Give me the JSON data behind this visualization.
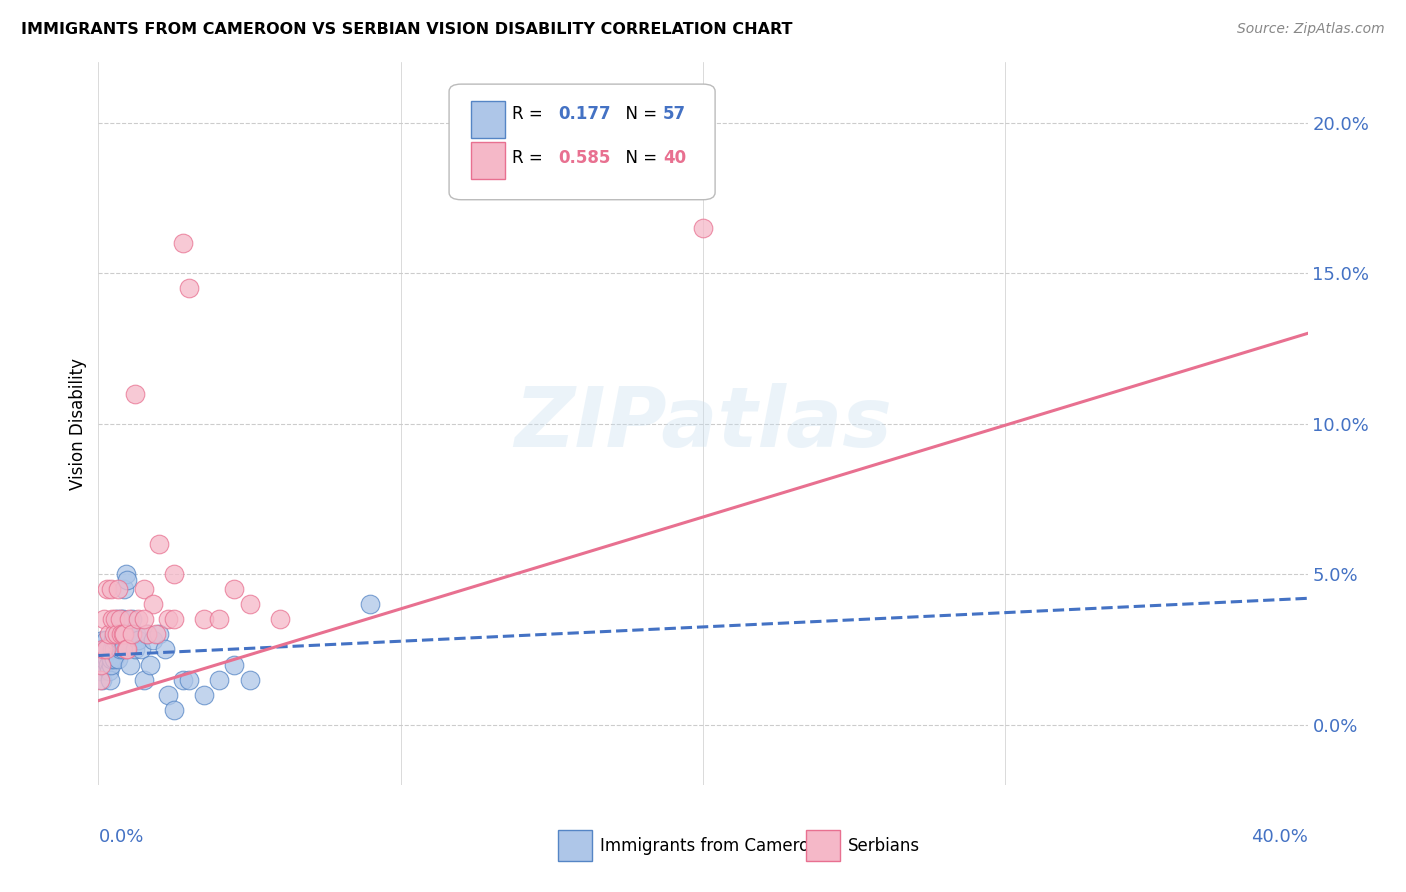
{
  "title": "IMMIGRANTS FROM CAMEROON VS SERBIAN VISION DISABILITY CORRELATION CHART",
  "source": "Source: ZipAtlas.com",
  "ylabel": "Vision Disability",
  "ytick_values": [
    0.0,
    5.0,
    10.0,
    15.0,
    20.0
  ],
  "xlim": [
    0.0,
    40.0
  ],
  "ylim": [
    -2.0,
    22.0
  ],
  "legend_blue_R": "0.177",
  "legend_blue_N": "57",
  "legend_pink_R": "0.585",
  "legend_pink_N": "40",
  "blue_fill": "#aec6e8",
  "pink_fill": "#f5b8c8",
  "blue_edge": "#5585c5",
  "pink_edge": "#e87090",
  "blue_line": "#4472C4",
  "pink_line": "#E87090",
  "blue_scatter_x": [
    0.05,
    0.08,
    0.1,
    0.12,
    0.15,
    0.18,
    0.2,
    0.22,
    0.25,
    0.28,
    0.3,
    0.32,
    0.35,
    0.38,
    0.4,
    0.42,
    0.45,
    0.48,
    0.5,
    0.52,
    0.55,
    0.58,
    0.6,
    0.62,
    0.65,
    0.7,
    0.72,
    0.75,
    0.8,
    0.82,
    0.85,
    0.9,
    0.92,
    0.95,
    1.0,
    1.05,
    1.1,
    1.15,
    1.2,
    1.25,
    1.3,
    1.4,
    1.5,
    1.6,
    1.7,
    1.8,
    2.0,
    2.2,
    2.3,
    2.5,
    2.8,
    3.0,
    3.5,
    4.0,
    4.5,
    5.0,
    9.0
  ],
  "blue_scatter_y": [
    2.2,
    1.8,
    2.5,
    1.5,
    2.8,
    2.0,
    2.2,
    2.5,
    2.8,
    2.2,
    2.5,
    2.0,
    1.8,
    1.5,
    2.0,
    2.2,
    2.5,
    2.8,
    2.5,
    2.2,
    2.8,
    3.0,
    3.2,
    3.5,
    2.2,
    2.5,
    2.8,
    3.5,
    3.5,
    2.5,
    4.5,
    5.0,
    3.0,
    4.8,
    3.0,
    2.0,
    3.5,
    3.0,
    2.5,
    3.0,
    2.8,
    2.5,
    1.5,
    3.0,
    2.0,
    2.8,
    3.0,
    2.5,
    1.0,
    0.5,
    1.5,
    1.5,
    1.0,
    1.5,
    2.0,
    1.5,
    4.0
  ],
  "pink_scatter_x": [
    0.05,
    0.1,
    0.15,
    0.2,
    0.25,
    0.3,
    0.35,
    0.4,
    0.45,
    0.5,
    0.55,
    0.6,
    0.65,
    0.7,
    0.75,
    0.8,
    0.85,
    0.9,
    0.95,
    1.0,
    1.1,
    1.2,
    1.3,
    1.5,
    1.6,
    1.8,
    1.9,
    2.0,
    2.3,
    2.5,
    2.8,
    3.0,
    3.5,
    4.0,
    4.5,
    5.0,
    6.0,
    2.5,
    1.5,
    20.0
  ],
  "pink_scatter_y": [
    1.5,
    2.0,
    2.5,
    3.5,
    2.5,
    4.5,
    3.0,
    4.5,
    3.5,
    3.0,
    3.5,
    3.0,
    4.5,
    3.5,
    3.0,
    3.0,
    3.0,
    2.5,
    2.5,
    3.5,
    3.0,
    11.0,
    3.5,
    4.5,
    3.0,
    4.0,
    3.0,
    6.0,
    3.5,
    5.0,
    16.0,
    14.5,
    3.5,
    3.5,
    4.5,
    4.0,
    3.5,
    3.5,
    3.5,
    16.5
  ],
  "blue_line_x0": 0.0,
  "blue_line_x1": 40.0,
  "blue_line_y0": 2.3,
  "blue_line_y1": 4.2,
  "pink_line_x0": 0.0,
  "pink_line_x1": 40.0,
  "pink_line_y0": 0.8,
  "pink_line_y1": 13.0
}
